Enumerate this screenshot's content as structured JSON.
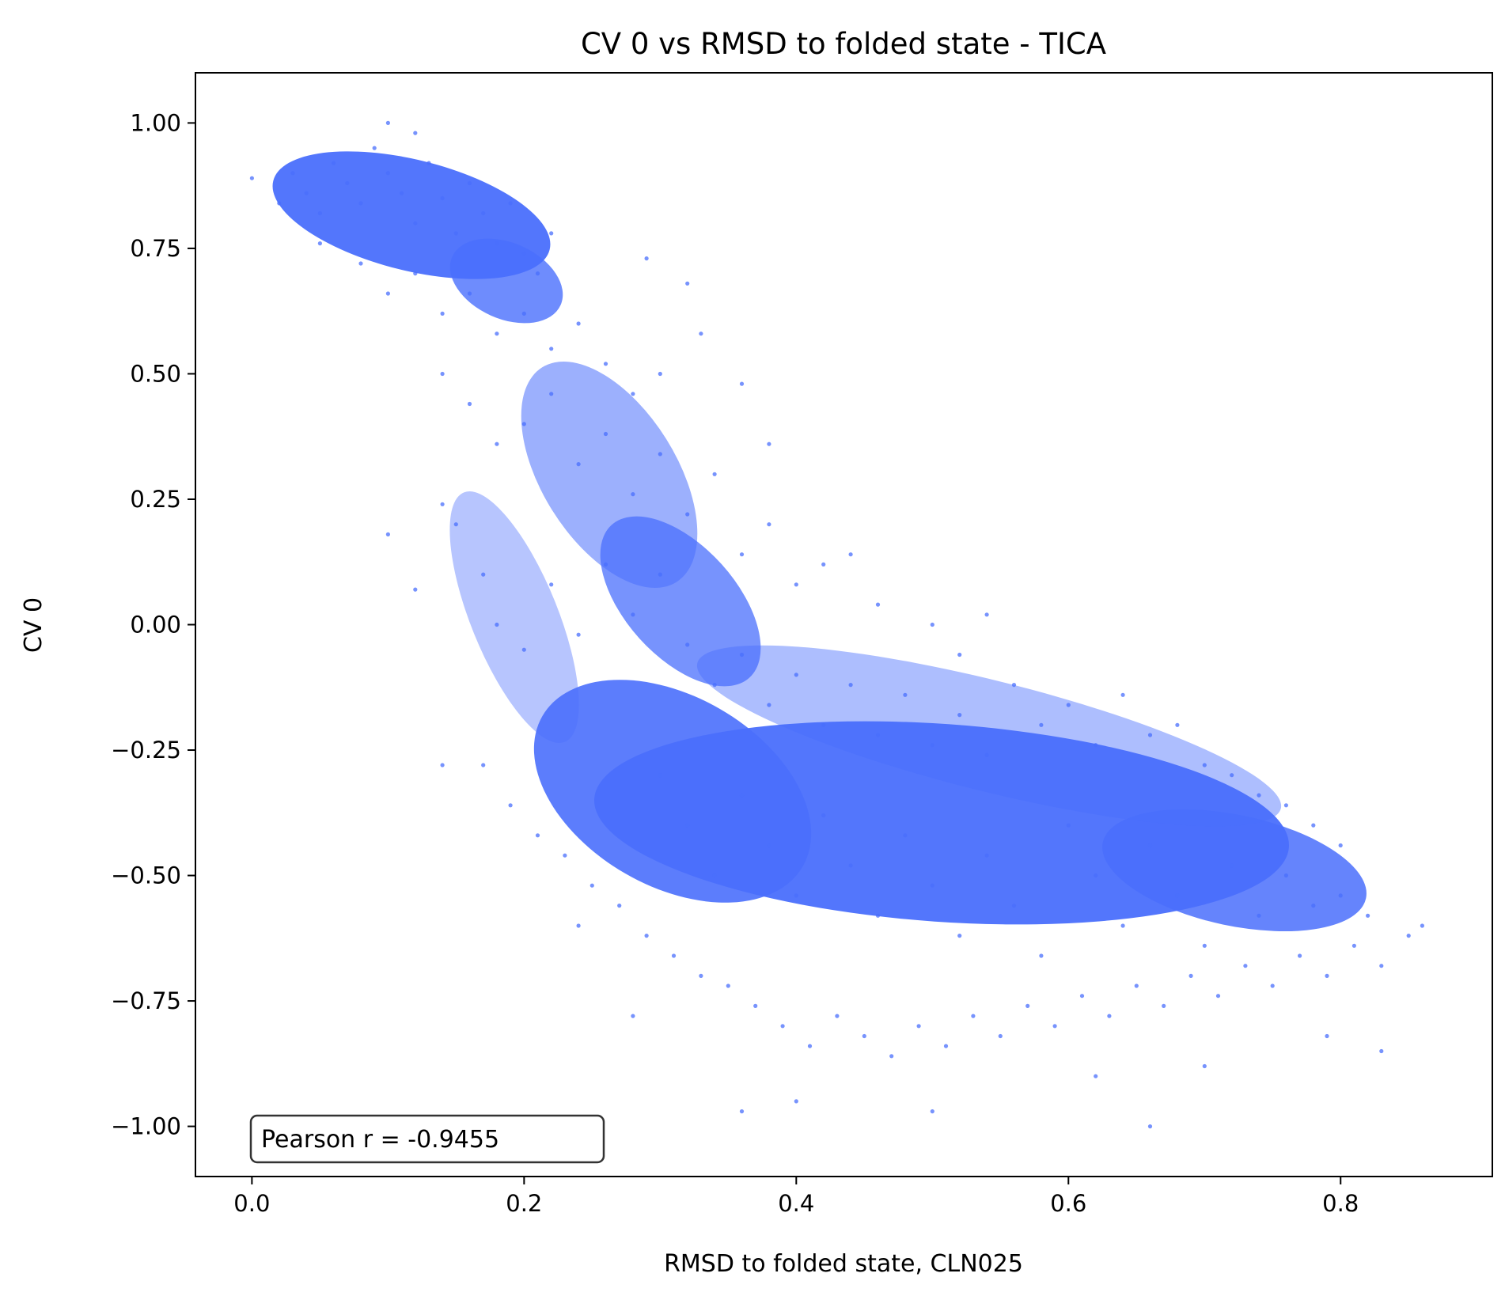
{
  "chart_data": {
    "type": "scatter",
    "title": "CV 0 vs RMSD to folded state - TICA",
    "xlabel": "RMSD to folded state, CLN025",
    "ylabel": "CV 0",
    "xlim": [
      -0.0415,
      0.9115
    ],
    "ylim": [
      -1.1,
      1.1
    ],
    "xticks": [
      0.0,
      0.2,
      0.4,
      0.6,
      0.8
    ],
    "xtick_labels": [
      "0.0",
      "0.2",
      "0.4",
      "0.6",
      "0.8"
    ],
    "yticks": [
      -1.0,
      -0.75,
      -0.5,
      -0.25,
      0.0,
      0.25,
      0.5,
      0.75,
      1.0
    ],
    "ytick_labels": [
      "−1.00",
      "−0.75",
      "−0.50",
      "−0.25",
      "0.00",
      "0.25",
      "0.50",
      "0.75",
      "1.00"
    ],
    "grid": false,
    "point_color": "#4a6ffc",
    "annotation": "Pearson r = -0.9455",
    "annotation_position": "bottom-left",
    "series": [
      {
        "points": [
          [
            0.0,
            0.89
          ],
          [
            0.02,
            0.84
          ],
          [
            0.03,
            0.9
          ],
          [
            0.04,
            0.86
          ],
          [
            0.05,
            0.82
          ],
          [
            0.06,
            0.92
          ],
          [
            0.07,
            0.88
          ],
          [
            0.08,
            0.84
          ],
          [
            0.09,
            0.95
          ],
          [
            0.1,
            0.9
          ],
          [
            0.11,
            0.86
          ],
          [
            0.12,
            0.8
          ],
          [
            0.13,
            0.92
          ],
          [
            0.14,
            0.85
          ],
          [
            0.15,
            0.78
          ],
          [
            0.16,
            0.88
          ],
          [
            0.17,
            0.82
          ],
          [
            0.18,
            0.76
          ],
          [
            0.19,
            0.84
          ],
          [
            0.2,
            0.74
          ],
          [
            0.21,
            0.7
          ],
          [
            0.22,
            0.78
          ],
          [
            0.05,
            0.76
          ],
          [
            0.08,
            0.72
          ],
          [
            0.1,
            0.66
          ],
          [
            0.12,
            0.7
          ],
          [
            0.14,
            0.62
          ],
          [
            0.16,
            0.66
          ],
          [
            0.18,
            0.58
          ],
          [
            0.2,
            0.62
          ],
          [
            0.22,
            0.55
          ],
          [
            0.24,
            0.6
          ],
          [
            0.29,
            0.73
          ],
          [
            0.32,
            0.68
          ],
          [
            0.1,
            1.0
          ],
          [
            0.12,
            0.98
          ],
          [
            0.14,
            0.5
          ],
          [
            0.16,
            0.44
          ],
          [
            0.18,
            0.36
          ],
          [
            0.2,
            0.4
          ],
          [
            0.22,
            0.46
          ],
          [
            0.24,
            0.32
          ],
          [
            0.26,
            0.38
          ],
          [
            0.28,
            0.26
          ],
          [
            0.3,
            0.34
          ],
          [
            0.32,
            0.22
          ],
          [
            0.34,
            0.3
          ],
          [
            0.36,
            0.14
          ],
          [
            0.38,
            0.2
          ],
          [
            0.4,
            0.08
          ],
          [
            0.42,
            0.12
          ],
          [
            0.26,
            0.52
          ],
          [
            0.28,
            0.46
          ],
          [
            0.3,
            0.5
          ],
          [
            0.33,
            0.58
          ],
          [
            0.36,
            0.48
          ],
          [
            0.38,
            0.36
          ],
          [
            0.44,
            0.14
          ],
          [
            0.46,
            0.04
          ],
          [
            0.15,
            0.2
          ],
          [
            0.17,
            0.1
          ],
          [
            0.18,
            0.0
          ],
          [
            0.2,
            -0.05
          ],
          [
            0.22,
            0.08
          ],
          [
            0.24,
            -0.02
          ],
          [
            0.26,
            0.12
          ],
          [
            0.28,
            0.02
          ],
          [
            0.3,
            0.1
          ],
          [
            0.14,
            0.24
          ],
          [
            0.12,
            0.07
          ],
          [
            0.32,
            -0.04
          ],
          [
            0.34,
            -0.12
          ],
          [
            0.36,
            -0.06
          ],
          [
            0.38,
            -0.16
          ],
          [
            0.4,
            -0.1
          ],
          [
            0.42,
            -0.2
          ],
          [
            0.44,
            -0.12
          ],
          [
            0.46,
            -0.22
          ],
          [
            0.48,
            -0.14
          ],
          [
            0.5,
            -0.24
          ],
          [
            0.52,
            -0.18
          ],
          [
            0.54,
            -0.26
          ],
          [
            0.56,
            -0.12
          ],
          [
            0.58,
            -0.2
          ],
          [
            0.6,
            -0.16
          ],
          [
            0.62,
            -0.24
          ],
          [
            0.64,
            -0.14
          ],
          [
            0.66,
            -0.22
          ],
          [
            0.68,
            -0.2
          ],
          [
            0.7,
            -0.28
          ],
          [
            0.72,
            -0.3
          ],
          [
            0.74,
            -0.34
          ],
          [
            0.76,
            -0.36
          ],
          [
            0.78,
            -0.4
          ],
          [
            0.8,
            -0.44
          ],
          [
            0.5,
            0.0
          ],
          [
            0.52,
            -0.06
          ],
          [
            0.54,
            0.02
          ],
          [
            0.17,
            -0.28
          ],
          [
            0.19,
            -0.36
          ],
          [
            0.21,
            -0.42
          ],
          [
            0.23,
            -0.46
          ],
          [
            0.25,
            -0.52
          ],
          [
            0.27,
            -0.56
          ],
          [
            0.29,
            -0.62
          ],
          [
            0.31,
            -0.66
          ],
          [
            0.33,
            -0.7
          ],
          [
            0.35,
            -0.72
          ],
          [
            0.37,
            -0.76
          ],
          [
            0.39,
            -0.8
          ],
          [
            0.41,
            -0.84
          ],
          [
            0.43,
            -0.78
          ],
          [
            0.45,
            -0.82
          ],
          [
            0.47,
            -0.86
          ],
          [
            0.49,
            -0.8
          ],
          [
            0.51,
            -0.84
          ],
          [
            0.53,
            -0.78
          ],
          [
            0.55,
            -0.82
          ],
          [
            0.57,
            -0.76
          ],
          [
            0.59,
            -0.8
          ],
          [
            0.61,
            -0.74
          ],
          [
            0.63,
            -0.78
          ],
          [
            0.65,
            -0.72
          ],
          [
            0.67,
            -0.76
          ],
          [
            0.69,
            -0.7
          ],
          [
            0.71,
            -0.74
          ],
          [
            0.73,
            -0.68
          ],
          [
            0.75,
            -0.72
          ],
          [
            0.77,
            -0.66
          ],
          [
            0.79,
            -0.7
          ],
          [
            0.81,
            -0.64
          ],
          [
            0.83,
            -0.68
          ],
          [
            0.85,
            -0.62
          ],
          [
            0.86,
            -0.6
          ],
          [
            0.3,
            -0.3
          ],
          [
            0.32,
            -0.4
          ],
          [
            0.34,
            -0.5
          ],
          [
            0.36,
            -0.34
          ],
          [
            0.38,
            -0.44
          ],
          [
            0.4,
            -0.54
          ],
          [
            0.42,
            -0.38
          ],
          [
            0.44,
            -0.48
          ],
          [
            0.46,
            -0.58
          ],
          [
            0.48,
            -0.42
          ],
          [
            0.5,
            -0.52
          ],
          [
            0.52,
            -0.62
          ],
          [
            0.54,
            -0.46
          ],
          [
            0.56,
            -0.56
          ],
          [
            0.58,
            -0.66
          ],
          [
            0.6,
            -0.4
          ],
          [
            0.62,
            -0.5
          ],
          [
            0.64,
            -0.6
          ],
          [
            0.66,
            -0.44
          ],
          [
            0.68,
            -0.54
          ],
          [
            0.7,
            -0.64
          ],
          [
            0.72,
            -0.48
          ],
          [
            0.74,
            -0.58
          ],
          [
            0.76,
            -0.5
          ],
          [
            0.78,
            -0.56
          ],
          [
            0.8,
            -0.54
          ],
          [
            0.82,
            -0.58
          ],
          [
            0.36,
            -0.97
          ],
          [
            0.4,
            -0.95
          ],
          [
            0.5,
            -0.97
          ],
          [
            0.66,
            -1.0
          ],
          [
            0.83,
            -0.85
          ],
          [
            0.14,
            -0.28
          ],
          [
            0.1,
            0.18
          ],
          [
            0.24,
            -0.6
          ],
          [
            0.28,
            -0.78
          ],
          [
            0.62,
            -0.9
          ],
          [
            0.7,
            -0.88
          ],
          [
            0.79,
            -0.82
          ]
        ]
      }
    ]
  }
}
